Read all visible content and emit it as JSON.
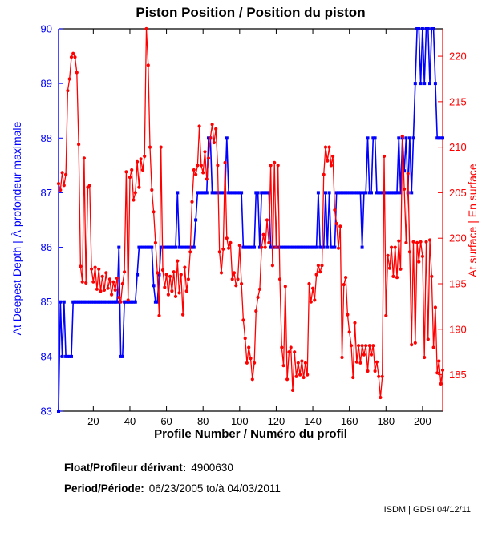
{
  "figure": {
    "title": "Piston Position / Position du piston",
    "xlabel": "Profile Number / Numéro du profil",
    "ylabel_left": "At Deepest Depth | À profondeur maximale",
    "ylabel_right": "At surface | En surface",
    "footer": {
      "float_label": "Float/Profileur dérivant:",
      "float_value": "4900630",
      "period_label": "Period/Période:",
      "period_value": "06/23/2005  to/à  04/03/2011"
    },
    "watermark": "ISDM | GDSI 04/12/11",
    "colors": {
      "left_axis": "#0000ff",
      "right_axis": "#ff0000",
      "frame": "#000000",
      "background": "#ffffff"
    }
  },
  "chart_data": {
    "type": "line",
    "title": "Piston Position / Position du piston",
    "xlabel": "Profile Number / Numéro du profil",
    "ylabel_left": "At Deepest Depth | À profondeur maximale",
    "ylabel_right": "At surface | En surface",
    "x_start": 1,
    "xlim": [
      1,
      211
    ],
    "ylim_left": [
      83,
      90
    ],
    "ylim_right": [
      181,
      223
    ],
    "x_ticks": [
      20,
      40,
      60,
      80,
      100,
      120,
      140,
      160,
      180,
      200
    ],
    "y_left_ticks": [
      83,
      84,
      85,
      86,
      87,
      88,
      89,
      90
    ],
    "y_right_ticks": [
      185,
      190,
      195,
      200,
      205,
      210,
      215,
      220
    ],
    "grid": false,
    "legend": "none",
    "series": [
      {
        "name": "At Deepest Depth | À profondeur maximale",
        "axis": "left",
        "color": "#0000ff",
        "marker": "square",
        "values": [
          83,
          85,
          84,
          85,
          84,
          84,
          84,
          84,
          85,
          85,
          85,
          85,
          85,
          85,
          85,
          85,
          85,
          85,
          85,
          85,
          85,
          85,
          85,
          85,
          85,
          85,
          85,
          85,
          85,
          85,
          85,
          85,
          85,
          86,
          84,
          84,
          85,
          85,
          85,
          85,
          85,
          85,
          85,
          85.5,
          86,
          86,
          86,
          86,
          86,
          86,
          86,
          86,
          85.3,
          85,
          85,
          85.5,
          86,
          86,
          86,
          86,
          86,
          86,
          86,
          86,
          86,
          87,
          86,
          86,
          86,
          86,
          86,
          86,
          86,
          86,
          86,
          86.5,
          87,
          87,
          87,
          87,
          87,
          87,
          88,
          88,
          87,
          87,
          87,
          87,
          87,
          87,
          87,
          87,
          88,
          87,
          87,
          87,
          87,
          87,
          87,
          87,
          87,
          86,
          86,
          86,
          86,
          86,
          86,
          86,
          87,
          87,
          86,
          87,
          87,
          87,
          87,
          87,
          86,
          86,
          86,
          86,
          86,
          86,
          86,
          86,
          86,
          86,
          86,
          86,
          86,
          86,
          86,
          86,
          86,
          86,
          86,
          86,
          86,
          86,
          86,
          86,
          86,
          86,
          87,
          86,
          86,
          86,
          87,
          86,
          87,
          86,
          86,
          86,
          87,
          87,
          87,
          87,
          87,
          87,
          87,
          87,
          87,
          87,
          87,
          87,
          87,
          87,
          86,
          87,
          87,
          88,
          87,
          87,
          88,
          88,
          87,
          87,
          87,
          87,
          87,
          87,
          87,
          87,
          87,
          87,
          87,
          87,
          88,
          87,
          88,
          87.4,
          88,
          87,
          88,
          87,
          88,
          89,
          90,
          90,
          89,
          90,
          89,
          90,
          90,
          89,
          90,
          90,
          89,
          88,
          88,
          88,
          88
        ]
      },
      {
        "name": "At surface | En surface",
        "axis": "right",
        "color": "#ff0000",
        "marker": "circle",
        "values": [
          206,
          205.3,
          207.2,
          205.8,
          207,
          216.2,
          217.5,
          219.9,
          220.3,
          219.9,
          218.2,
          210.3,
          196.9,
          195.2,
          208.8,
          195.1,
          205.6,
          205.8,
          196.6,
          195.2,
          196.8,
          194.4,
          196.6,
          194.2,
          195.8,
          194.3,
          196.2,
          194.5,
          195.5,
          193.8,
          195.2,
          194.3,
          195.6,
          193.5,
          193,
          195,
          196.3,
          207.3,
          193.2,
          206.7,
          207.5,
          204.2,
          205,
          208.4,
          205.6,
          208.7,
          207.5,
          209,
          223,
          219,
          210,
          205.3,
          202.9,
          199.5,
          196.2,
          191.5,
          210,
          196.5,
          194.6,
          196,
          193.8,
          195.8,
          194.2,
          196.3,
          193.6,
          197.5,
          194,
          196,
          191.6,
          196.8,
          194.2,
          195.5,
          198.5,
          204,
          207.5,
          207,
          208,
          212.3,
          208,
          207.2,
          209.5,
          206.5,
          208.8,
          211,
          212.5,
          210.5,
          212,
          208,
          198.5,
          196.2,
          198.8,
          208.3,
          200,
          198.9,
          199.5,
          195.5,
          196.2,
          194.8,
          195.5,
          199.2,
          195,
          191,
          189,
          186.3,
          188,
          186.8,
          184.5,
          186.3,
          192,
          193.5,
          194.4,
          199,
          200.4,
          199,
          202,
          199.5,
          208,
          197,
          208.3,
          199,
          208,
          195.5,
          188,
          186,
          194.7,
          184.5,
          187.5,
          188,
          183.3,
          187.5,
          184.8,
          186.3,
          185,
          186.5,
          184.7,
          186.3,
          185,
          195,
          193,
          194.5,
          193.2,
          196,
          197,
          196.3,
          197,
          207,
          210,
          208.5,
          210,
          208,
          209,
          203.1,
          201.6,
          198.9,
          201.3,
          186.9,
          194.9,
          195.7,
          191.6,
          189.7,
          188.2,
          184.7,
          190.7,
          186.4,
          188.2,
          186.3,
          188.2,
          187.2,
          188.2,
          185.4,
          188.2,
          187.2,
          188.2,
          185.4,
          186.4,
          184.8,
          182.5,
          184.8,
          209,
          191.5,
          198.1,
          196.7,
          199,
          195.8,
          199,
          195.7,
          199.7,
          196.6,
          211.2,
          205.4,
          199.5,
          207.1,
          198.5,
          188.3,
          199.6,
          188.5,
          199.5,
          197.4,
          199.6,
          198,
          186.9,
          199.6,
          188.9,
          199.8,
          195.8,
          188,
          192.4,
          185.2,
          186.5,
          184,
          185.5
        ]
      }
    ]
  }
}
